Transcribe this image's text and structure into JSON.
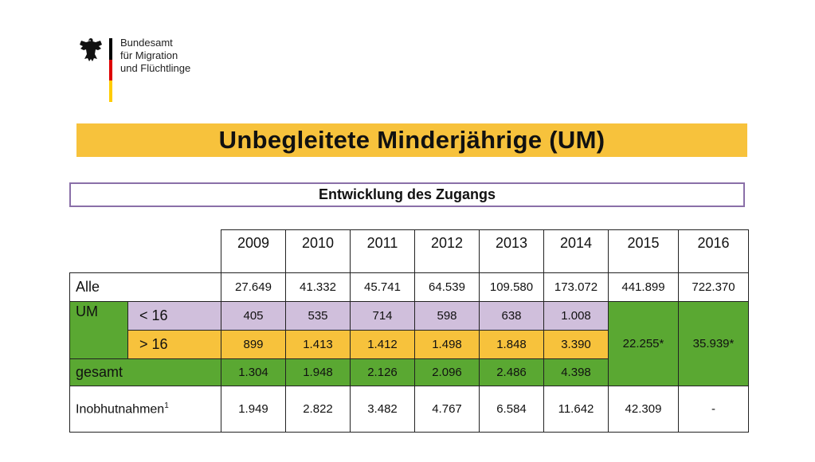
{
  "logo": {
    "lines": [
      "Bundesamt",
      "für Migration",
      "und Flüchtlinge"
    ],
    "flag_colors": [
      "#000000",
      "#dd0000",
      "#ffcc00"
    ]
  },
  "title": "Unbegleitete Minderjährige  (UM)",
  "subtitle": "Entwicklung des Zugangs",
  "colors": {
    "title_band": "#f7c23c",
    "green": "#5aa832",
    "purple": "#d0bfdc",
    "yellow": "#f7c23c",
    "subtitle_border": "#8a6fa8"
  },
  "table": {
    "years": [
      "2009",
      "2010",
      "2011",
      "2012",
      "2013",
      "2014",
      "2015",
      "2016"
    ],
    "alle": {
      "label": "Alle",
      "values": [
        "27.649",
        "41.332",
        "45.741",
        "64.539",
        "109.580",
        "173.072",
        "441.899",
        "722.370"
      ]
    },
    "um": {
      "label": "UM",
      "under16": {
        "label": "< 16",
        "values": [
          "405",
          "535",
          "714",
          "598",
          "638",
          "1.008"
        ]
      },
      "over16": {
        "label": "> 16",
        "values": [
          "899",
          "1.413",
          "1.412",
          "1.498",
          "1.848",
          "3.390"
        ]
      },
      "merged": [
        "22.255*",
        "35.939*"
      ]
    },
    "gesamt": {
      "label": "gesamt",
      "values": [
        "1.304",
        "1.948",
        "2.126",
        "2.096",
        "2.486",
        "4.398"
      ]
    },
    "inob": {
      "label": "Inobhutnahmen",
      "footnote": "1",
      "values": [
        "1.949",
        "2.822",
        "3.482",
        "4.767",
        "6.584",
        "11.642",
        "42.309",
        "-"
      ]
    }
  }
}
